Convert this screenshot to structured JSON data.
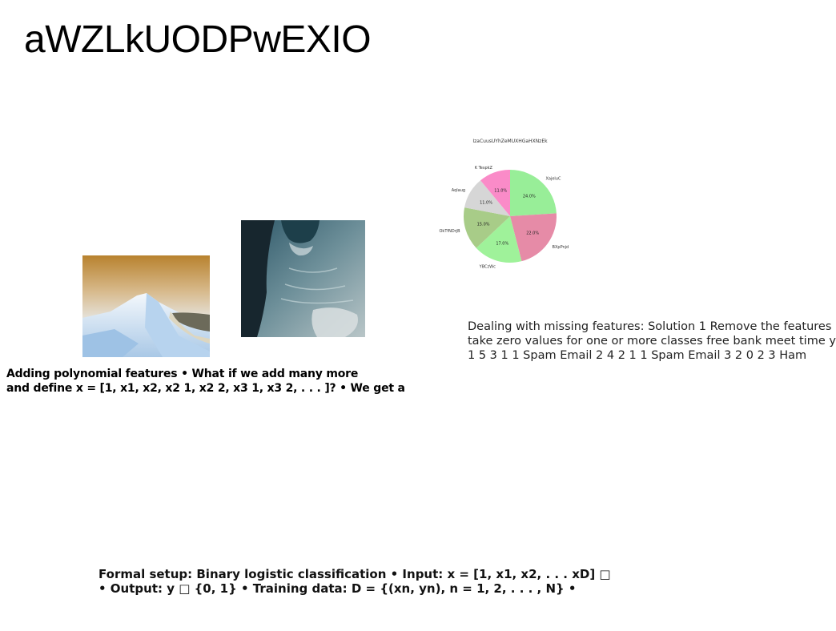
{
  "slide": {
    "title": "aWZLkUODPwEXIO"
  },
  "text_blocks": {
    "polynomial": {
      "line1": "Adding polynomial features • What if we add many more",
      "line2": "and define x = [1, x1, x2, x2 1, x2 2, x3 1, x3 2, . . . ]? • We get a"
    },
    "missing": {
      "line1": "Dealing with missing features: Solution 1 Remove the features",
      "line2": "take zero values for one or more classes free bank meet time y",
      "line3": "1 5 3 1 1 Spam Email 2 4 2 1 1 Spam Email 3 2 0 2 3 Ham"
    },
    "formal": {
      "line1": "Formal setup: Binary logistic classification • Input: x = [1, x1, x2, . . . xD] □",
      "line2": "• Output: y □ {0, 1} • Training data: D = {(xn, yn), n = 1, 2, . . . , N} •"
    }
  },
  "images": {
    "mountain": "snowy-mountain-photo",
    "coast": "aerial-coastline-photo"
  },
  "chart_data": {
    "type": "pie",
    "title": "IzaCuusUYhZeMUXHGaHXNzEk",
    "categories": [
      "XajeluC",
      "BXpPnjd",
      "YBCzWc",
      "OkTfNDrjB",
      "Aqlaug",
      "K TespkZ"
    ],
    "values": [
      24.0,
      22.0,
      17.0,
      15.0,
      11.0,
      11.0
    ],
    "value_labels": [
      "24.0%",
      "22.0%",
      "17.0%",
      "15.0%",
      "11.0%",
      "11.0%"
    ],
    "colors": [
      "#98ee98",
      "#e68ba7",
      "#9ff29a",
      "#a8cc88",
      "#d6d6d6",
      "#fa8bc8"
    ],
    "start_angle_deg": 90,
    "direction": "clockwise",
    "legend": "none"
  }
}
